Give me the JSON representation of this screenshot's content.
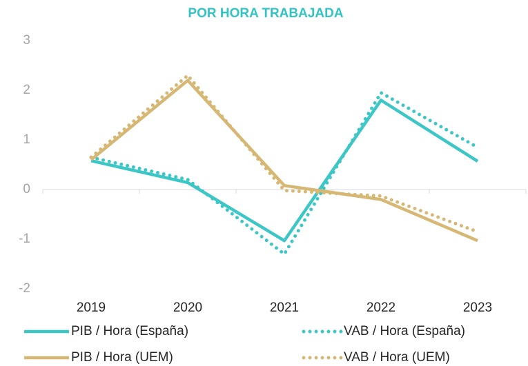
{
  "chart_data": {
    "type": "line",
    "title": "POR HORA TRABAJADA",
    "categories": [
      "2019",
      "2020",
      "2021",
      "2022",
      "2023"
    ],
    "series": [
      {
        "name": "PIB / Hora (España)",
        "color": "#3cc6c6",
        "dash": "solid",
        "values": [
          0.58,
          0.14,
          -1.03,
          1.8,
          0.57
        ]
      },
      {
        "name": "VAB / Hora (España)",
        "color": "#3cc6c6",
        "dash": "dotted",
        "values": [
          0.65,
          0.2,
          -1.3,
          1.95,
          0.85
        ]
      },
      {
        "name": "PIB / Hora (UEM)",
        "color": "#d6b874",
        "dash": "solid",
        "values": [
          0.6,
          2.2,
          0.08,
          -0.2,
          -1.03
        ]
      },
      {
        "name": "VAB / Hora (UEM)",
        "color": "#d6b874",
        "dash": "dotted",
        "values": [
          0.65,
          2.3,
          -0.02,
          -0.13,
          -0.85
        ]
      }
    ],
    "ylim": [
      -2,
      3
    ],
    "yticks": [
      -2,
      -1,
      0,
      1,
      2,
      3
    ],
    "grid": false
  }
}
